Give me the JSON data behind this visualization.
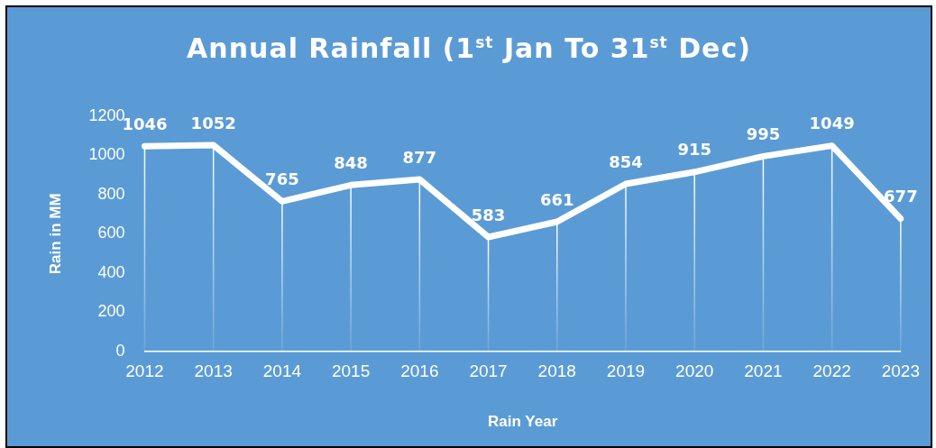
{
  "chart_data": {
    "type": "line",
    "title": "Annual Rainfall (1$^{st}$ Jan To 31$^{st}$ Dec)",
    "xlabel": "Rain Year",
    "ylabel": "Rain in MM",
    "categories": [
      "2012",
      "2013",
      "2014",
      "2015",
      "2016",
      "2017",
      "2018",
      "2019",
      "2020",
      "2021",
      "2022",
      "2023"
    ],
    "series": [
      {
        "color": "#ffffff",
        "values": [
          1046,
          1052,
          765,
          848,
          877,
          583,
          661,
          854,
          915,
          995,
          1049,
          677
        ]
      }
    ],
    "ylim": [
      0,
      1200
    ],
    "yticks": [
      0,
      200,
      400,
      600,
      800,
      1000,
      1200
    ],
    "grid": "x",
    "legend": false,
    "marker": "none",
    "line_style": "solid",
    "data_labels": true
  }
}
